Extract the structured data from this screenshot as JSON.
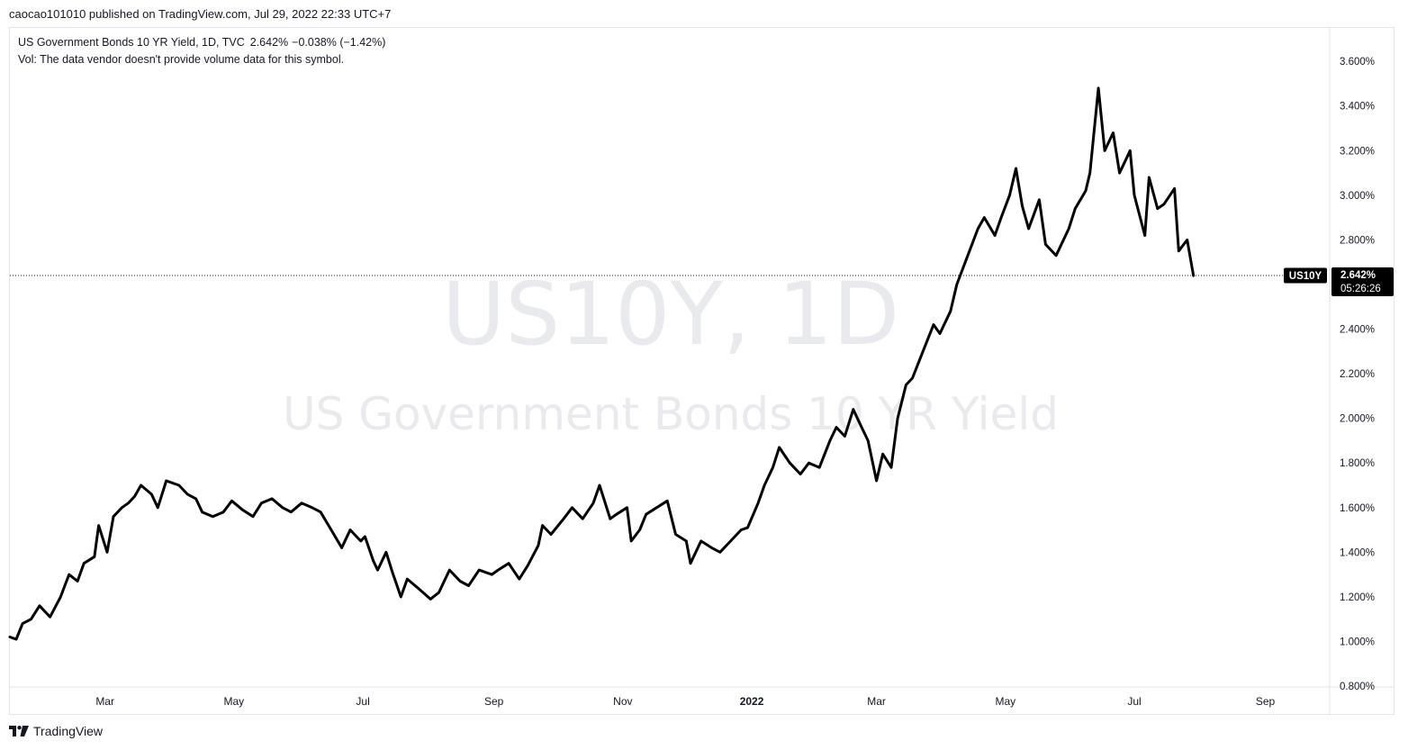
{
  "header": {
    "publish_line": "caocao101010 published on TradingView.com, Jul 29, 2022 22:33 UTC+7"
  },
  "legend": {
    "title": "US Government Bonds 10 YR Yield, 1D, TVC",
    "value": "2.642%",
    "change": "−0.038% (−1.42%)",
    "volume_note": "Vol: The data vendor doesn't provide volume data for this symbol."
  },
  "watermark": {
    "ticker": "US10Y, 1D",
    "description": "US Government Bonds 10 YR Yield"
  },
  "price_marker": {
    "symbol": "US10Y",
    "price": "2.642%",
    "countdown": "05:26:26"
  },
  "footer": {
    "brand": "TradingView"
  },
  "colors": {
    "line": "#000000",
    "price_label_bg": "#000000",
    "watermark": "#e9eaee",
    "grid_border": "#e0e3eb"
  },
  "chart_data": {
    "type": "line",
    "title": "US Government Bonds 10 YR Yield",
    "xlabel": "",
    "ylabel": "",
    "ylim": [
      0.8,
      3.75
    ],
    "xlim": [
      "2021-01-15",
      "2022-10-01"
    ],
    "grid": false,
    "y_ticks": [
      "0.800%",
      "1.000%",
      "1.200%",
      "1.400%",
      "1.600%",
      "1.800%",
      "2.000%",
      "2.200%",
      "2.400%",
      "2.800%",
      "3.000%",
      "3.200%",
      "3.400%",
      "3.600%"
    ],
    "y_tick_values": [
      0.8,
      1.0,
      1.2,
      1.4,
      1.6,
      1.8,
      2.0,
      2.2,
      2.4,
      2.8,
      3.0,
      3.2,
      3.4,
      3.6
    ],
    "x_ticks": [
      {
        "label": "Mar",
        "date": "2021-03-01",
        "bold": false
      },
      {
        "label": "May",
        "date": "2021-05-01",
        "bold": false
      },
      {
        "label": "Jul",
        "date": "2021-07-01",
        "bold": false
      },
      {
        "label": "Sep",
        "date": "2021-09-01",
        "bold": false
      },
      {
        "label": "Nov",
        "date": "2021-11-01",
        "bold": false
      },
      {
        "label": "2022",
        "date": "2022-01-01",
        "bold": true
      },
      {
        "label": "Mar",
        "date": "2022-03-01",
        "bold": false
      },
      {
        "label": "May",
        "date": "2022-05-01",
        "bold": false
      },
      {
        "label": "Jul",
        "date": "2022-07-01",
        "bold": false
      },
      {
        "label": "Sep",
        "date": "2022-09-01",
        "bold": false
      }
    ],
    "series": [
      {
        "x": [
          "2021-01-15",
          "2021-01-18",
          "2021-01-21",
          "2021-01-25",
          "2021-01-29",
          "2021-02-03",
          "2021-02-08",
          "2021-02-12",
          "2021-02-16",
          "2021-02-19",
          "2021-02-24",
          "2021-02-26",
          "2021-03-02",
          "2021-03-05",
          "2021-03-09",
          "2021-03-12",
          "2021-03-15",
          "2021-03-18",
          "2021-03-23",
          "2021-03-26",
          "2021-03-30",
          "2021-04-05",
          "2021-04-09",
          "2021-04-13",
          "2021-04-16",
          "2021-04-21",
          "2021-04-26",
          "2021-04-30",
          "2021-05-05",
          "2021-05-10",
          "2021-05-14",
          "2021-05-19",
          "2021-05-24",
          "2021-05-28",
          "2021-06-02",
          "2021-06-07",
          "2021-06-11",
          "2021-06-16",
          "2021-06-21",
          "2021-06-25",
          "2021-06-30",
          "2021-07-02",
          "2021-07-06",
          "2021-07-08",
          "2021-07-12",
          "2021-07-15",
          "2021-07-19",
          "2021-07-22",
          "2021-07-27",
          "2021-08-02",
          "2021-08-06",
          "2021-08-11",
          "2021-08-16",
          "2021-08-20",
          "2021-08-25",
          "2021-08-31",
          "2021-09-03",
          "2021-09-08",
          "2021-09-13",
          "2021-09-17",
          "2021-09-22",
          "2021-09-24",
          "2021-09-28",
          "2021-10-04",
          "2021-10-08",
          "2021-10-13",
          "2021-10-18",
          "2021-10-21",
          "2021-10-26",
          "2021-10-29",
          "2021-11-03",
          "2021-11-05",
          "2021-11-09",
          "2021-11-12",
          "2021-11-17",
          "2021-11-22",
          "2021-11-26",
          "2021-12-01",
          "2021-12-03",
          "2021-12-08",
          "2021-12-13",
          "2021-12-17",
          "2021-12-22",
          "2021-12-27",
          "2021-12-30",
          "2022-01-04",
          "2022-01-07",
          "2022-01-11",
          "2022-01-14",
          "2022-01-19",
          "2022-01-24",
          "2022-01-28",
          "2022-02-02",
          "2022-02-07",
          "2022-02-10",
          "2022-02-14",
          "2022-02-18",
          "2022-02-22",
          "2022-02-25",
          "2022-03-01",
          "2022-03-04",
          "2022-03-08",
          "2022-03-11",
          "2022-03-15",
          "2022-03-18",
          "2022-03-23",
          "2022-03-28",
          "2022-03-31",
          "2022-04-05",
          "2022-04-08",
          "2022-04-12",
          "2022-04-18",
          "2022-04-21",
          "2022-04-26",
          "2022-04-29",
          "2022-05-03",
          "2022-05-06",
          "2022-05-09",
          "2022-05-12",
          "2022-05-17",
          "2022-05-20",
          "2022-05-25",
          "2022-05-31",
          "2022-06-03",
          "2022-06-08",
          "2022-06-10",
          "2022-06-14",
          "2022-06-17",
          "2022-06-21",
          "2022-06-24",
          "2022-06-29",
          "2022-07-01",
          "2022-07-06",
          "2022-07-08",
          "2022-07-12",
          "2022-07-15",
          "2022-07-20",
          "2022-07-22",
          "2022-07-26",
          "2022-07-29"
        ],
        "values": [
          1.02,
          1.01,
          1.08,
          1.1,
          1.16,
          1.11,
          1.2,
          1.3,
          1.27,
          1.35,
          1.38,
          1.52,
          1.4,
          1.56,
          1.6,
          1.62,
          1.65,
          1.7,
          1.66,
          1.6,
          1.72,
          1.7,
          1.66,
          1.64,
          1.58,
          1.56,
          1.58,
          1.63,
          1.59,
          1.56,
          1.62,
          1.64,
          1.6,
          1.58,
          1.62,
          1.6,
          1.58,
          1.5,
          1.42,
          1.5,
          1.45,
          1.47,
          1.36,
          1.32,
          1.4,
          1.31,
          1.2,
          1.28,
          1.24,
          1.19,
          1.22,
          1.32,
          1.27,
          1.25,
          1.32,
          1.3,
          1.32,
          1.35,
          1.28,
          1.34,
          1.43,
          1.52,
          1.48,
          1.55,
          1.6,
          1.55,
          1.62,
          1.7,
          1.55,
          1.57,
          1.6,
          1.45,
          1.5,
          1.57,
          1.6,
          1.63,
          1.48,
          1.45,
          1.35,
          1.45,
          1.42,
          1.4,
          1.45,
          1.5,
          1.51,
          1.62,
          1.7,
          1.78,
          1.87,
          1.8,
          1.75,
          1.8,
          1.78,
          1.9,
          1.96,
          1.92,
          2.04,
          1.96,
          1.9,
          1.72,
          1.84,
          1.78,
          2.0,
          2.15,
          2.18,
          2.3,
          2.42,
          2.38,
          2.48,
          2.6,
          2.7,
          2.85,
          2.9,
          2.82,
          2.9,
          3.0,
          3.12,
          2.95,
          2.85,
          2.98,
          2.78,
          2.73,
          2.85,
          2.94,
          3.02,
          3.1,
          3.48,
          3.2,
          3.28,
          3.1,
          3.2,
          3.0,
          2.82,
          3.08,
          2.94,
          2.96,
          3.03,
          2.75,
          2.8,
          2.64
        ]
      }
    ]
  }
}
